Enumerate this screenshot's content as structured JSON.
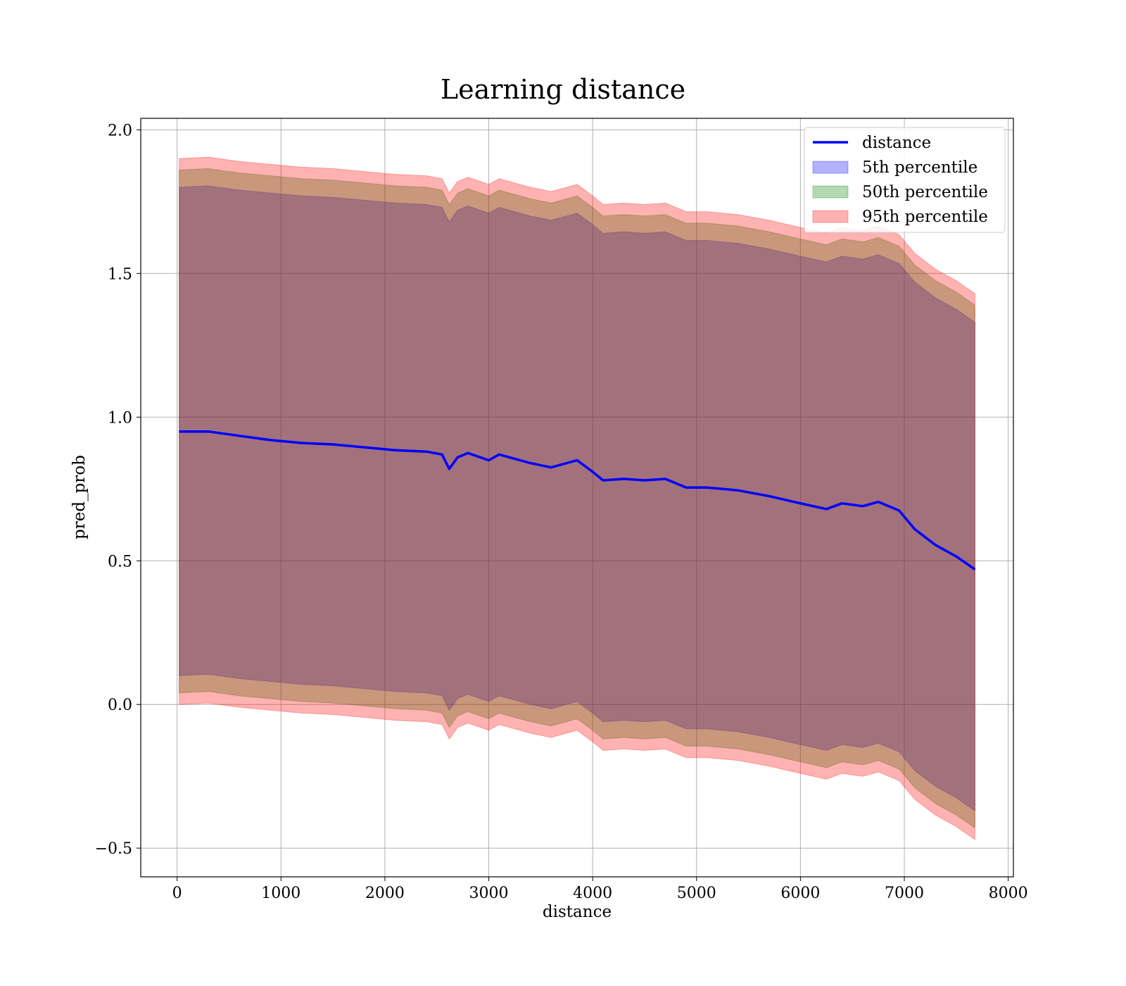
{
  "chart_data": {
    "type": "area",
    "title": "Learning distance",
    "xlabel": "distance",
    "ylabel": "pred_prob",
    "xlim": [
      -350,
      8050
    ],
    "ylim": [
      -0.6,
      2.04
    ],
    "xticks": [
      0,
      1000,
      2000,
      3000,
      4000,
      5000,
      6000,
      7000,
      8000
    ],
    "xtick_labels": [
      "0",
      "1000",
      "2000",
      "3000",
      "4000",
      "5000",
      "6000",
      "7000",
      "8000"
    ],
    "yticks": [
      -0.5,
      0.0,
      0.5,
      1.0,
      1.5,
      2.0
    ],
    "ytick_labels": [
      "−0.5",
      "0.0",
      "0.5",
      "1.0",
      "1.5",
      "2.0"
    ],
    "grid": true,
    "legend_position": "top-right",
    "x": [
      20,
      300,
      600,
      900,
      1200,
      1500,
      1800,
      2100,
      2400,
      2550,
      2620,
      2700,
      2800,
      3000,
      3100,
      3250,
      3400,
      3600,
      3800,
      3850,
      4000,
      4100,
      4300,
      4500,
      4700,
      4900,
      5100,
      5400,
      5700,
      6000,
      6250,
      6400,
      6600,
      6750,
      6950,
      7100,
      7300,
      7500,
      7680
    ],
    "series": [
      {
        "name": "distance",
        "kind": "line",
        "color": "#0000ff",
        "values": [
          0.95,
          0.95,
          0.935,
          0.92,
          0.91,
          0.905,
          0.895,
          0.885,
          0.88,
          0.87,
          0.82,
          0.86,
          0.875,
          0.85,
          0.87,
          0.855,
          0.84,
          0.825,
          0.845,
          0.85,
          0.81,
          0.78,
          0.785,
          0.78,
          0.785,
          0.755,
          0.755,
          0.745,
          0.725,
          0.7,
          0.68,
          0.7,
          0.69,
          0.705,
          0.675,
          0.61,
          0.555,
          0.515,
          0.47
        ]
      },
      {
        "name": "5th percentile",
        "kind": "band",
        "color": "#0000ff",
        "opacity": 0.3,
        "lower": [
          0.1,
          0.105,
          0.09,
          0.08,
          0.07,
          0.065,
          0.055,
          0.045,
          0.04,
          0.03,
          -0.02,
          0.02,
          0.035,
          0.01,
          0.03,
          0.015,
          0.0,
          -0.015,
          0.005,
          0.01,
          -0.03,
          -0.06,
          -0.055,
          -0.06,
          -0.055,
          -0.085,
          -0.085,
          -0.095,
          -0.115,
          -0.14,
          -0.16,
          -0.14,
          -0.15,
          -0.135,
          -0.165,
          -0.23,
          -0.285,
          -0.325,
          -0.37
        ],
        "upper": [
          1.8,
          1.805,
          1.79,
          1.78,
          1.77,
          1.765,
          1.755,
          1.745,
          1.74,
          1.73,
          1.68,
          1.72,
          1.735,
          1.71,
          1.73,
          1.715,
          1.7,
          1.685,
          1.705,
          1.71,
          1.67,
          1.64,
          1.645,
          1.64,
          1.645,
          1.615,
          1.615,
          1.605,
          1.585,
          1.56,
          1.54,
          1.56,
          1.55,
          1.565,
          1.535,
          1.47,
          1.415,
          1.375,
          1.33
        ]
      },
      {
        "name": "50th percentile",
        "kind": "band",
        "color": "#008000",
        "opacity": 0.3,
        "lower": [
          0.04,
          0.045,
          0.03,
          0.02,
          0.01,
          0.005,
          -0.005,
          -0.015,
          -0.02,
          -0.03,
          -0.08,
          -0.04,
          -0.025,
          -0.05,
          -0.03,
          -0.045,
          -0.06,
          -0.075,
          -0.055,
          -0.05,
          -0.09,
          -0.12,
          -0.115,
          -0.12,
          -0.115,
          -0.145,
          -0.145,
          -0.155,
          -0.175,
          -0.2,
          -0.22,
          -0.2,
          -0.21,
          -0.195,
          -0.225,
          -0.29,
          -0.345,
          -0.385,
          -0.43
        ],
        "upper": [
          1.86,
          1.865,
          1.85,
          1.84,
          1.83,
          1.825,
          1.815,
          1.805,
          1.8,
          1.79,
          1.74,
          1.78,
          1.795,
          1.77,
          1.79,
          1.775,
          1.76,
          1.745,
          1.765,
          1.77,
          1.73,
          1.7,
          1.705,
          1.7,
          1.705,
          1.675,
          1.675,
          1.665,
          1.645,
          1.62,
          1.6,
          1.62,
          1.61,
          1.625,
          1.595,
          1.53,
          1.475,
          1.435,
          1.39
        ]
      },
      {
        "name": "95th percentile",
        "kind": "band",
        "color": "#ff0000",
        "opacity": 0.3,
        "lower": [
          0.0,
          0.005,
          -0.01,
          -0.02,
          -0.03,
          -0.035,
          -0.045,
          -0.055,
          -0.06,
          -0.07,
          -0.12,
          -0.08,
          -0.065,
          -0.09,
          -0.07,
          -0.085,
          -0.1,
          -0.115,
          -0.095,
          -0.09,
          -0.13,
          -0.16,
          -0.155,
          -0.16,
          -0.155,
          -0.185,
          -0.185,
          -0.195,
          -0.215,
          -0.24,
          -0.26,
          -0.24,
          -0.25,
          -0.235,
          -0.265,
          -0.33,
          -0.385,
          -0.425,
          -0.47
        ],
        "upper": [
          1.9,
          1.905,
          1.89,
          1.88,
          1.87,
          1.865,
          1.855,
          1.845,
          1.84,
          1.83,
          1.78,
          1.82,
          1.835,
          1.81,
          1.83,
          1.815,
          1.8,
          1.785,
          1.805,
          1.81,
          1.77,
          1.74,
          1.745,
          1.74,
          1.745,
          1.715,
          1.715,
          1.705,
          1.685,
          1.66,
          1.64,
          1.66,
          1.65,
          1.665,
          1.635,
          1.57,
          1.515,
          1.475,
          1.43
        ]
      }
    ]
  }
}
